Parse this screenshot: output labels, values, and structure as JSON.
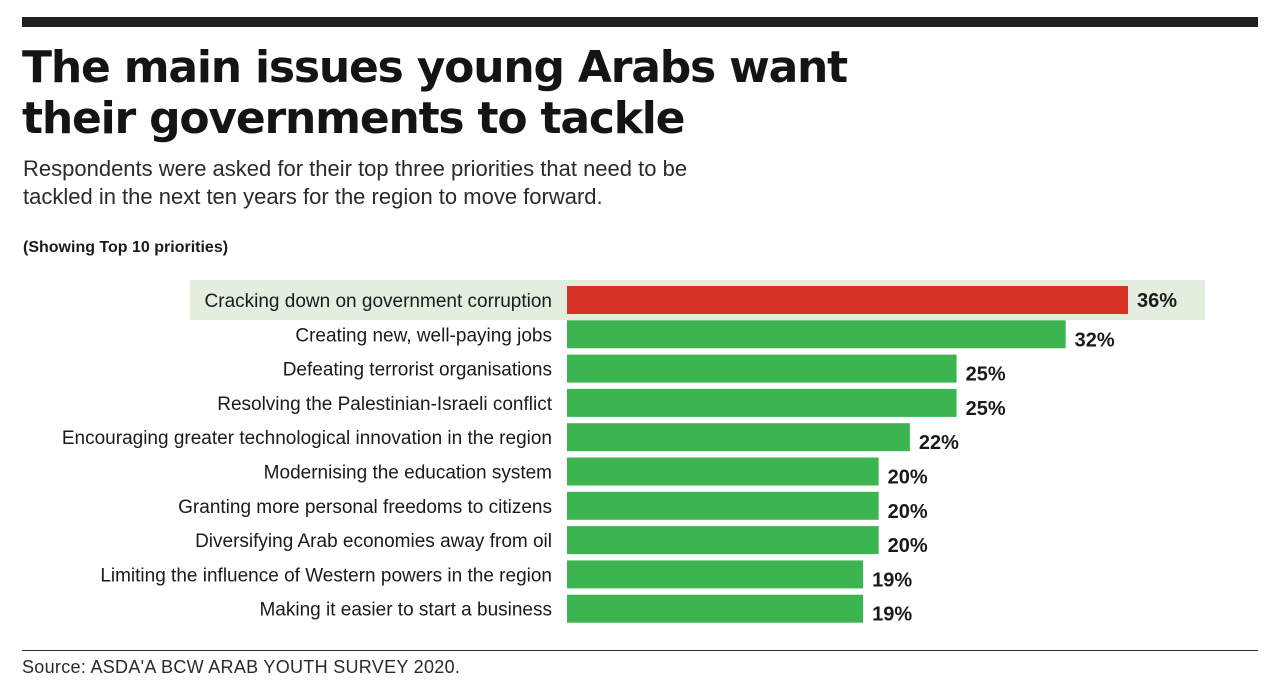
{
  "header": {
    "title": "The main issues young Arabs want their governments to tackle",
    "subtitle": "Respondents were asked for their top three priorities that need to be tackled in the next ten years for the region to move forward.",
    "note": "(Showing Top 10 priorities)"
  },
  "footer": {
    "source": "Source: ASDA'A BCW ARAB YOUTH SURVEY 2020."
  },
  "colors": {
    "highlight_bar": "#d63228",
    "bar": "#3cb550",
    "highlight_band": "#e3eedf",
    "text": "#1a1a1a"
  },
  "chart_data": {
    "type": "bar",
    "orientation": "horizontal",
    "unit": "%",
    "xlim": [
      0,
      36
    ],
    "grid": false,
    "legend": "none",
    "highlight_index": 0,
    "categories": [
      "Cracking down on government corruption",
      "Creating new, well-paying jobs",
      "Defeating terrorist organisations",
      "Resolving the Palestinian-Israeli conflict",
      "Encouraging greater technological innovation in the region",
      "Modernising the education system",
      "Granting more personal freedoms to citizens",
      "Diversifying Arab economies away from oil",
      "Limiting the influence of Western powers in the region",
      "Making it easier to start a business"
    ],
    "values": [
      36,
      32,
      25,
      25,
      22,
      20,
      20,
      20,
      19,
      19
    ],
    "value_labels": [
      "36%",
      "32%",
      "25%",
      "25%",
      "22%",
      "20%",
      "20%",
      "20%",
      "19%",
      "19%"
    ]
  }
}
